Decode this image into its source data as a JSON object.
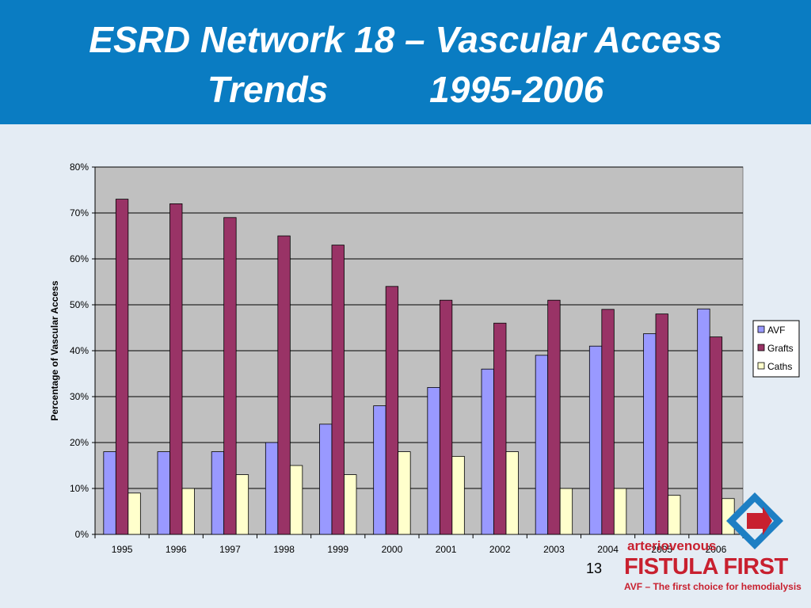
{
  "slide": {
    "title_line1": "ESRD Network 18 – Vascular Access",
    "title_line2": "Trends          1995-2006",
    "page_number": "13"
  },
  "logo": {
    "line1": "arteriovenous",
    "line2": "FISTULA FIRST",
    "line3": "AVF – The first choice for hemodialysis",
    "icon": "fistula-first-arrow-logo-icon"
  },
  "colors": {
    "avf": "#9999ff",
    "grafts": "#993366",
    "caths": "#ffffcc",
    "plot_bg": "#c0c0c0",
    "header": "#0a7cc2"
  },
  "chart_data": {
    "type": "bar",
    "ylabel": "Percentage of Vascular Access",
    "xlabel": "",
    "ylim": [
      0,
      80
    ],
    "yticks": [
      "0%",
      "10%",
      "20%",
      "30%",
      "40%",
      "50%",
      "60%",
      "70%",
      "80%"
    ],
    "grid": true,
    "legend_position": "right",
    "categories": [
      "1995",
      "1996",
      "1997",
      "1998",
      "1999",
      "2000",
      "2001",
      "2002",
      "2003",
      "2004",
      "2005",
      "2006"
    ],
    "series": [
      {
        "name": "AVF",
        "values": [
          18,
          18,
          18,
          20,
          24,
          28,
          32,
          36,
          39,
          41,
          43.7,
          49.1
        ]
      },
      {
        "name": "Grafts",
        "values": [
          73,
          72,
          69,
          65,
          63,
          54,
          51,
          46,
          51,
          49,
          48,
          43
        ]
      },
      {
        "name": "Caths",
        "values": [
          9,
          10,
          13,
          15,
          13,
          18,
          17,
          18,
          10,
          10,
          8.5,
          7.8
        ]
      }
    ]
  }
}
